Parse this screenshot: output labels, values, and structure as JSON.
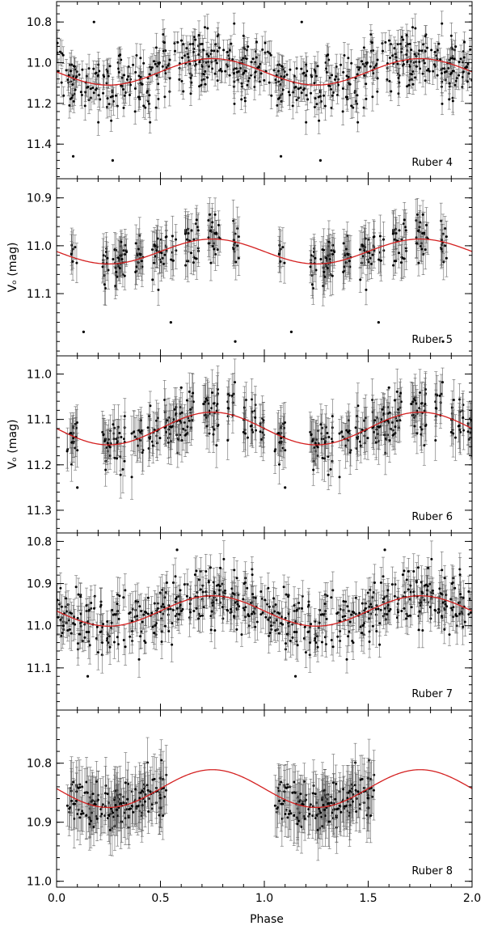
{
  "chart_data": [
    {
      "type": "scatter",
      "panel_label": "Ruber 4",
      "ylabel": "",
      "ylim": [
        11.57,
        10.7
      ],
      "yticks": [
        10.8,
        11.0,
        11.2,
        11.4
      ],
      "yticklabels": [
        "10.8",
        "11.0",
        "11.2",
        "11.4"
      ],
      "model": {
        "mean": 11.045,
        "amplitude": 0.065,
        "min_phase": 0.25
      },
      "scatter_sigma": 0.11,
      "errbar": 0.055,
      "phase_coverage": [
        [
          0.0,
          1.0
        ]
      ],
      "outliers": [
        [
          0.18,
          10.8
        ],
        [
          1.18,
          10.8
        ],
        [
          0.08,
          11.46
        ],
        [
          0.27,
          11.48
        ],
        [
          1.08,
          11.46
        ],
        [
          1.27,
          11.48
        ]
      ],
      "series": [
        {
          "values": []
        },
        {
          "values": []
        }
      ]
    },
    {
      "type": "scatter",
      "panel_label": "Ruber 5",
      "ylabel": "Vₒ (mag)",
      "ylim": [
        11.23,
        10.86
      ],
      "yticks": [
        10.9,
        11.0,
        11.1
      ],
      "yticklabels": [
        "10.9",
        "11.0",
        "11.1"
      ],
      "model": {
        "mean": 11.012,
        "amplitude": 0.026,
        "min_phase": 0.25
      },
      "scatter_sigma": 0.03,
      "errbar": 0.035,
      "phase_coverage": [
        [
          0.07,
          0.1
        ],
        [
          0.22,
          0.25
        ],
        [
          0.27,
          0.34
        ],
        [
          0.38,
          0.42
        ],
        [
          0.46,
          0.53
        ],
        [
          0.55,
          0.58
        ],
        [
          0.62,
          0.69
        ],
        [
          0.73,
          0.79
        ],
        [
          0.85,
          0.88
        ]
      ],
      "outliers": [
        [
          0.13,
          11.18
        ],
        [
          0.55,
          11.16
        ],
        [
          1.13,
          11.18
        ],
        [
          1.55,
          11.16
        ],
        [
          0.86,
          11.2
        ],
        [
          1.86,
          11.2
        ]
      ],
      "series": [
        {
          "values": []
        },
        {
          "values": []
        }
      ]
    },
    {
      "type": "scatter",
      "panel_label": "Ruber 6",
      "ylabel": "Vₒ (mag)",
      "ylim": [
        11.35,
        10.96
      ],
      "yticks": [
        11.0,
        11.1,
        11.2,
        11.3
      ],
      "yticklabels": [
        "11.0",
        "11.1",
        "11.2",
        "11.3"
      ],
      "model": {
        "mean": 11.12,
        "amplitude": 0.036,
        "min_phase": 0.25
      },
      "scatter_sigma": 0.035,
      "errbar": 0.04,
      "phase_coverage": [
        [
          0.05,
          0.1
        ],
        [
          0.22,
          0.33
        ],
        [
          0.36,
          0.42
        ],
        [
          0.44,
          0.5
        ],
        [
          0.52,
          0.66
        ],
        [
          0.7,
          0.78
        ],
        [
          0.82,
          0.86
        ],
        [
          0.9,
          0.96
        ],
        [
          0.98,
          1.0
        ]
      ],
      "outliers": [
        [
          0.1,
          11.25
        ],
        [
          1.1,
          11.25
        ],
        [
          0.6,
          11.03
        ],
        [
          1.6,
          11.03
        ]
      ],
      "series": [
        {
          "values": []
        },
        {
          "values": []
        }
      ]
    },
    {
      "type": "scatter",
      "panel_label": "Ruber 7",
      "ylabel": "",
      "ylim": [
        11.2,
        10.78
      ],
      "yticks": [
        10.8,
        10.9,
        11.0,
        11.1
      ],
      "yticklabels": [
        "10.8",
        "10.9",
        "11.0",
        "11.1"
      ],
      "model": {
        "mean": 10.965,
        "amplitude": 0.036,
        "min_phase": 0.25
      },
      "scatter_sigma": 0.045,
      "errbar": 0.035,
      "phase_coverage": [
        [
          0.0,
          1.0
        ]
      ],
      "outliers": [
        [
          0.15,
          11.12
        ],
        [
          0.58,
          10.82
        ],
        [
          1.15,
          11.12
        ],
        [
          1.58,
          10.82
        ]
      ],
      "series": [
        {
          "values": []
        },
        {
          "values": []
        }
      ]
    },
    {
      "type": "scatter",
      "panel_label": "Ruber 8",
      "ylabel": "",
      "ylim": [
        11.01,
        10.71
      ],
      "yticks": [
        10.8,
        10.9,
        11.0
      ],
      "yticklabels": [
        "10.8",
        "10.9",
        "11.0"
      ],
      "model": {
        "mean": 10.843,
        "amplitude": 0.032,
        "min_phase": 0.25
      },
      "scatter_sigma": 0.025,
      "errbar": 0.04,
      "phase_coverage": [
        [
          0.05,
          0.53
        ]
      ],
      "outliers": [],
      "series": [
        {
          "values": []
        },
        {
          "values": []
        }
      ]
    }
  ],
  "xaxis": {
    "label": "Phase",
    "xlim": [
      0.0,
      2.0
    ],
    "ticks": [
      0.0,
      0.5,
      1.0,
      1.5,
      2.0
    ],
    "ticklabels": [
      "0.0",
      "0.5",
      "1.0",
      "1.5",
      "2.0"
    ]
  },
  "colors": {
    "model_curve": "#d42020",
    "points": "#000000",
    "errorbars": "#666666",
    "frame": "#000000"
  }
}
